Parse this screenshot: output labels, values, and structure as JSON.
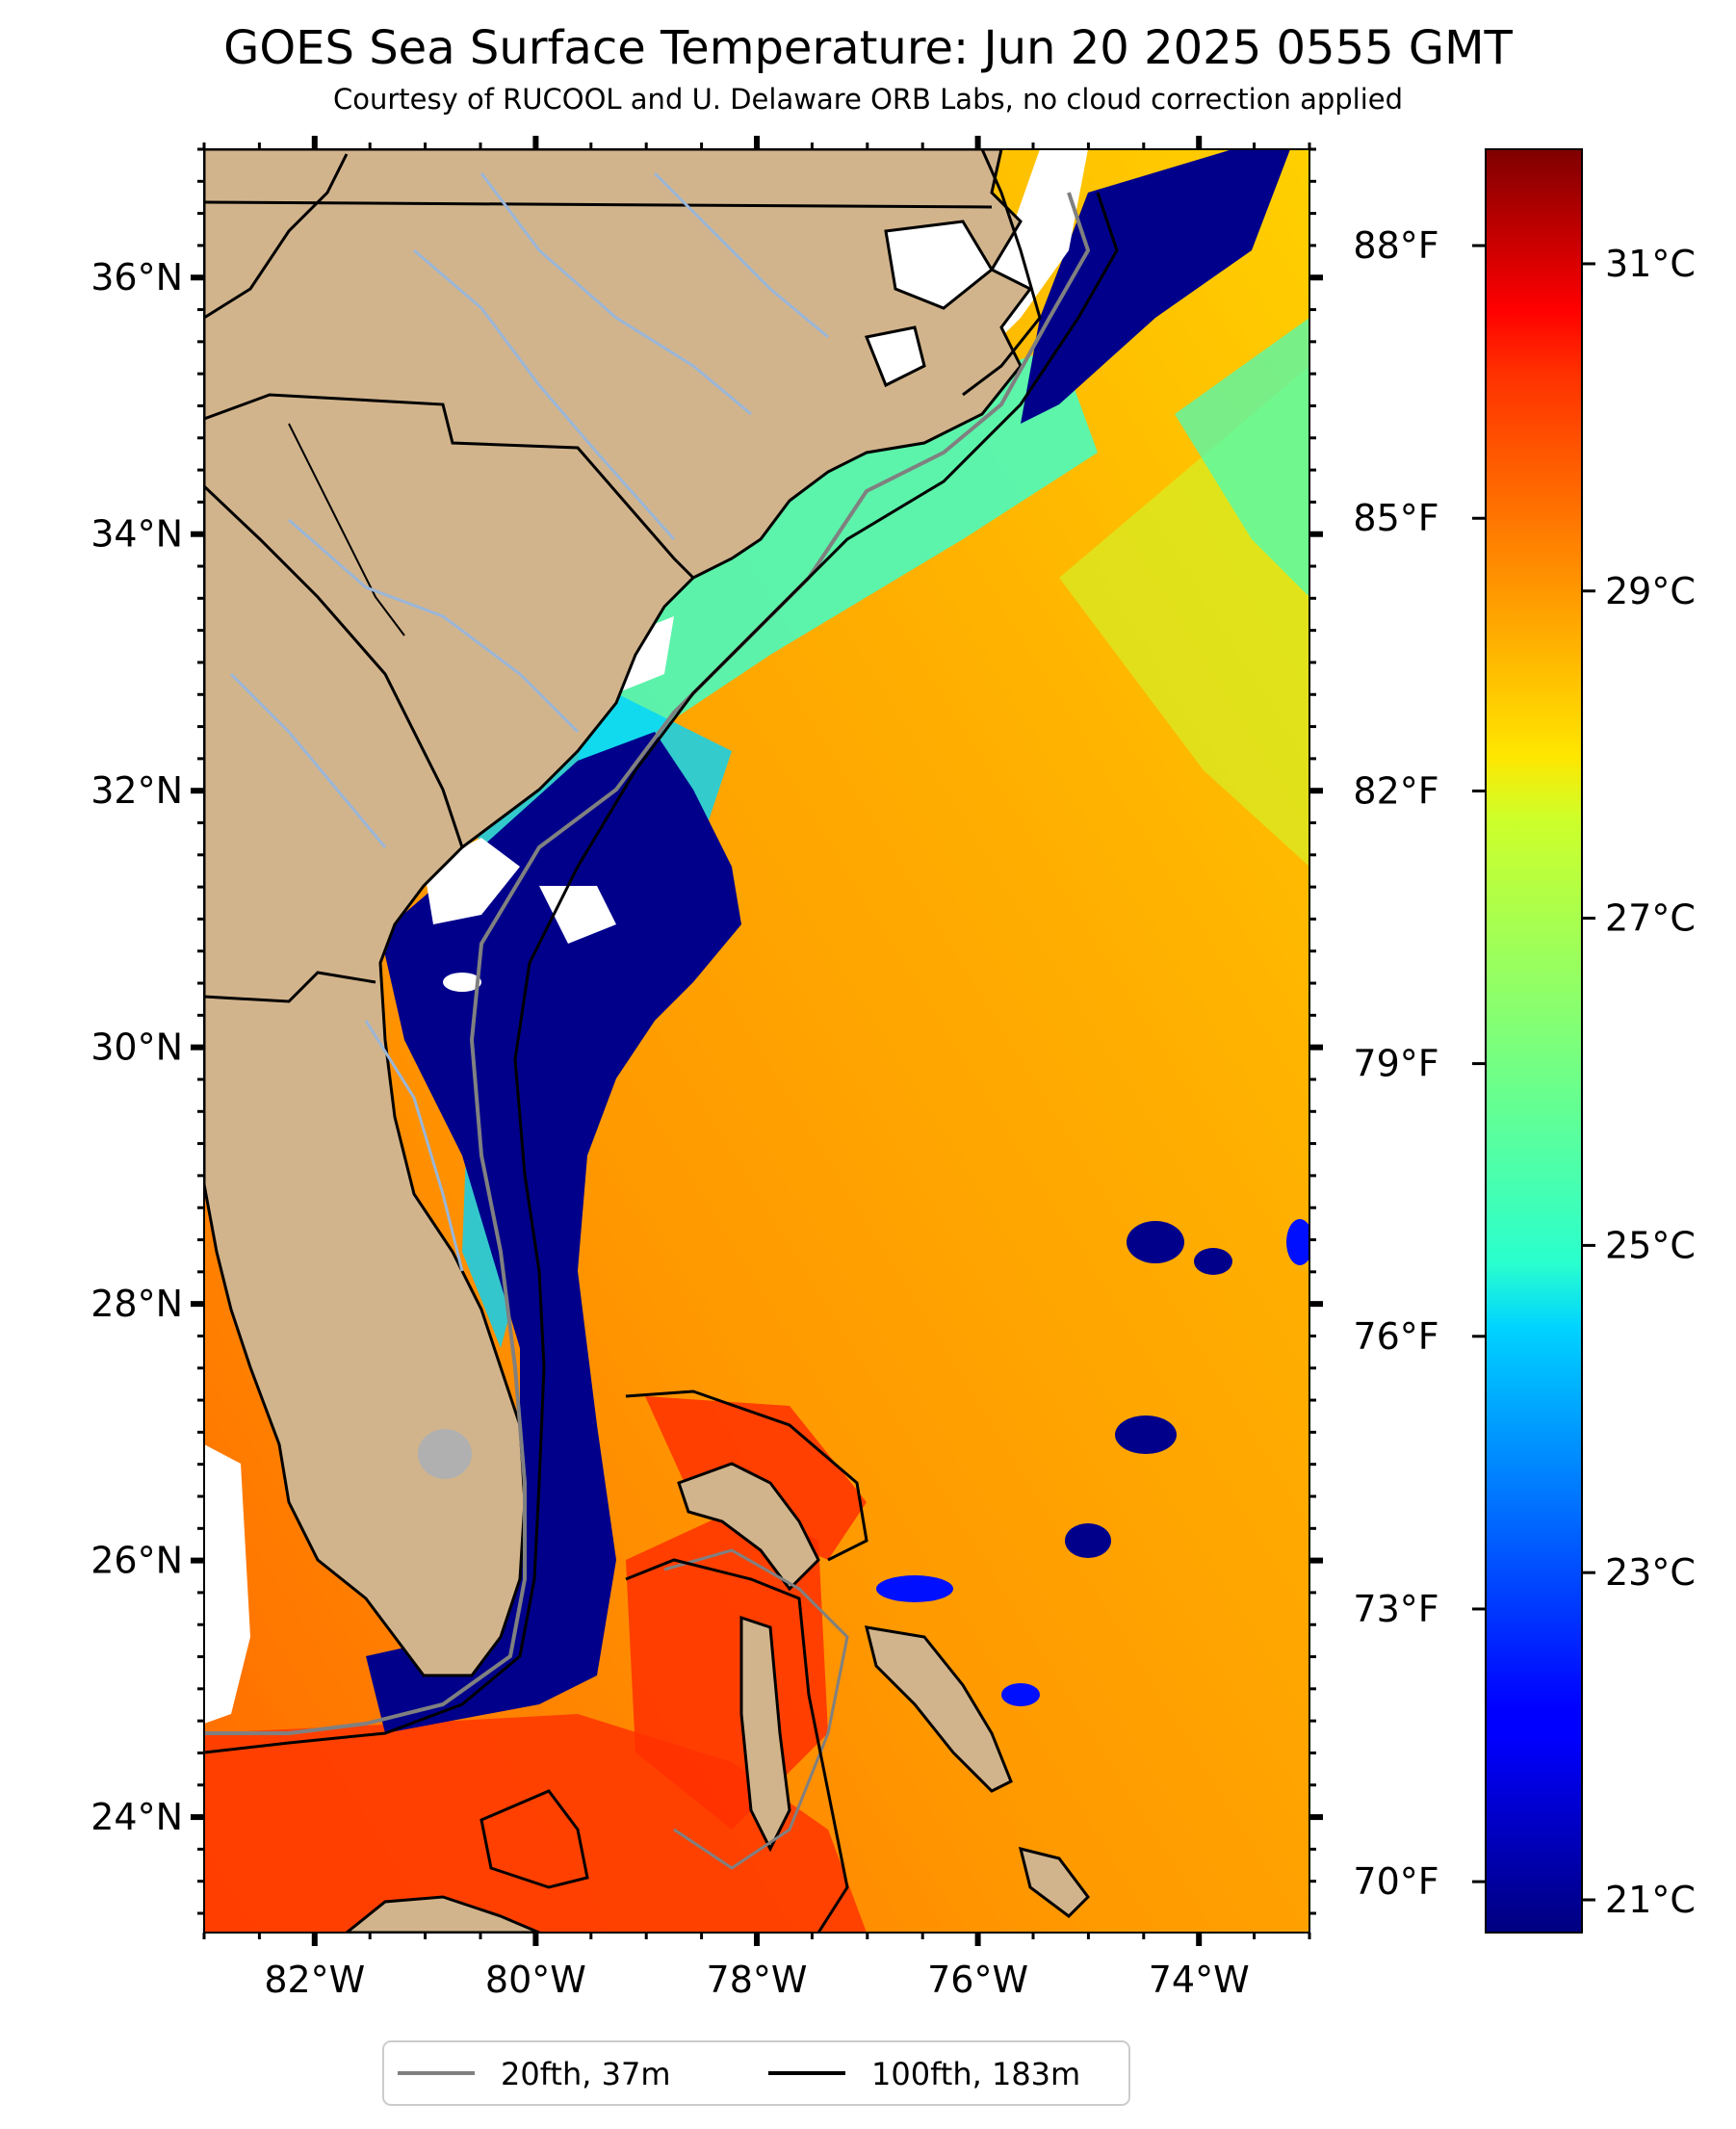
{
  "header": {
    "title": "GOES Sea Surface Temperature: Jun 20 2025 0555 GMT",
    "subtitle": "Courtesy of RUCOOL and U. Delaware ORB Labs, no cloud correction applied"
  },
  "map": {
    "lon_range": [
      -83,
      -73
    ],
    "lat_range": [
      23.1,
      37.0
    ],
    "lon_ticks": [
      {
        "value": -82,
        "label": "82°W"
      },
      {
        "value": -80,
        "label": "80°W"
      },
      {
        "value": -78,
        "label": "78°W"
      },
      {
        "value": -76,
        "label": "76°W"
      },
      {
        "value": -74,
        "label": "74°W"
      }
    ],
    "lat_ticks": [
      {
        "value": 24,
        "label": "24°N"
      },
      {
        "value": 26,
        "label": "26°N"
      },
      {
        "value": 28,
        "label": "28°N"
      },
      {
        "value": 30,
        "label": "30°N"
      },
      {
        "value": 32,
        "label": "32°N"
      },
      {
        "value": 34,
        "label": "34°N"
      },
      {
        "value": 36,
        "label": "36°N"
      }
    ],
    "colors": {
      "land": "#d2b48c",
      "cold_water": "#00008b",
      "cloud": "#ffffff",
      "iso_20fth": "#808080",
      "iso_100fth": "#000000"
    }
  },
  "colorbar": {
    "range_c": [
      20.8,
      31.7
    ],
    "celsius_ticks": [
      {
        "value": 21,
        "label": "21°C"
      },
      {
        "value": 23,
        "label": "23°C"
      },
      {
        "value": 25,
        "label": "25°C"
      },
      {
        "value": 27,
        "label": "27°C"
      },
      {
        "value": 29,
        "label": "29°C"
      },
      {
        "value": 31,
        "label": "31°C"
      }
    ],
    "fahrenheit_ticks": [
      {
        "value": 70,
        "label": "70°F"
      },
      {
        "value": 73,
        "label": "73°F"
      },
      {
        "value": 76,
        "label": "76°F"
      },
      {
        "value": 79,
        "label": "79°F"
      },
      {
        "value": 82,
        "label": "82°F"
      },
      {
        "value": 85,
        "label": "85°F"
      },
      {
        "value": 88,
        "label": "88°F"
      }
    ],
    "colormap": "jet"
  },
  "legend": {
    "items": [
      {
        "label": "20fth, 37m",
        "color": "#808080"
      },
      {
        "label": "100fth, 183m",
        "color": "#000000"
      }
    ]
  }
}
